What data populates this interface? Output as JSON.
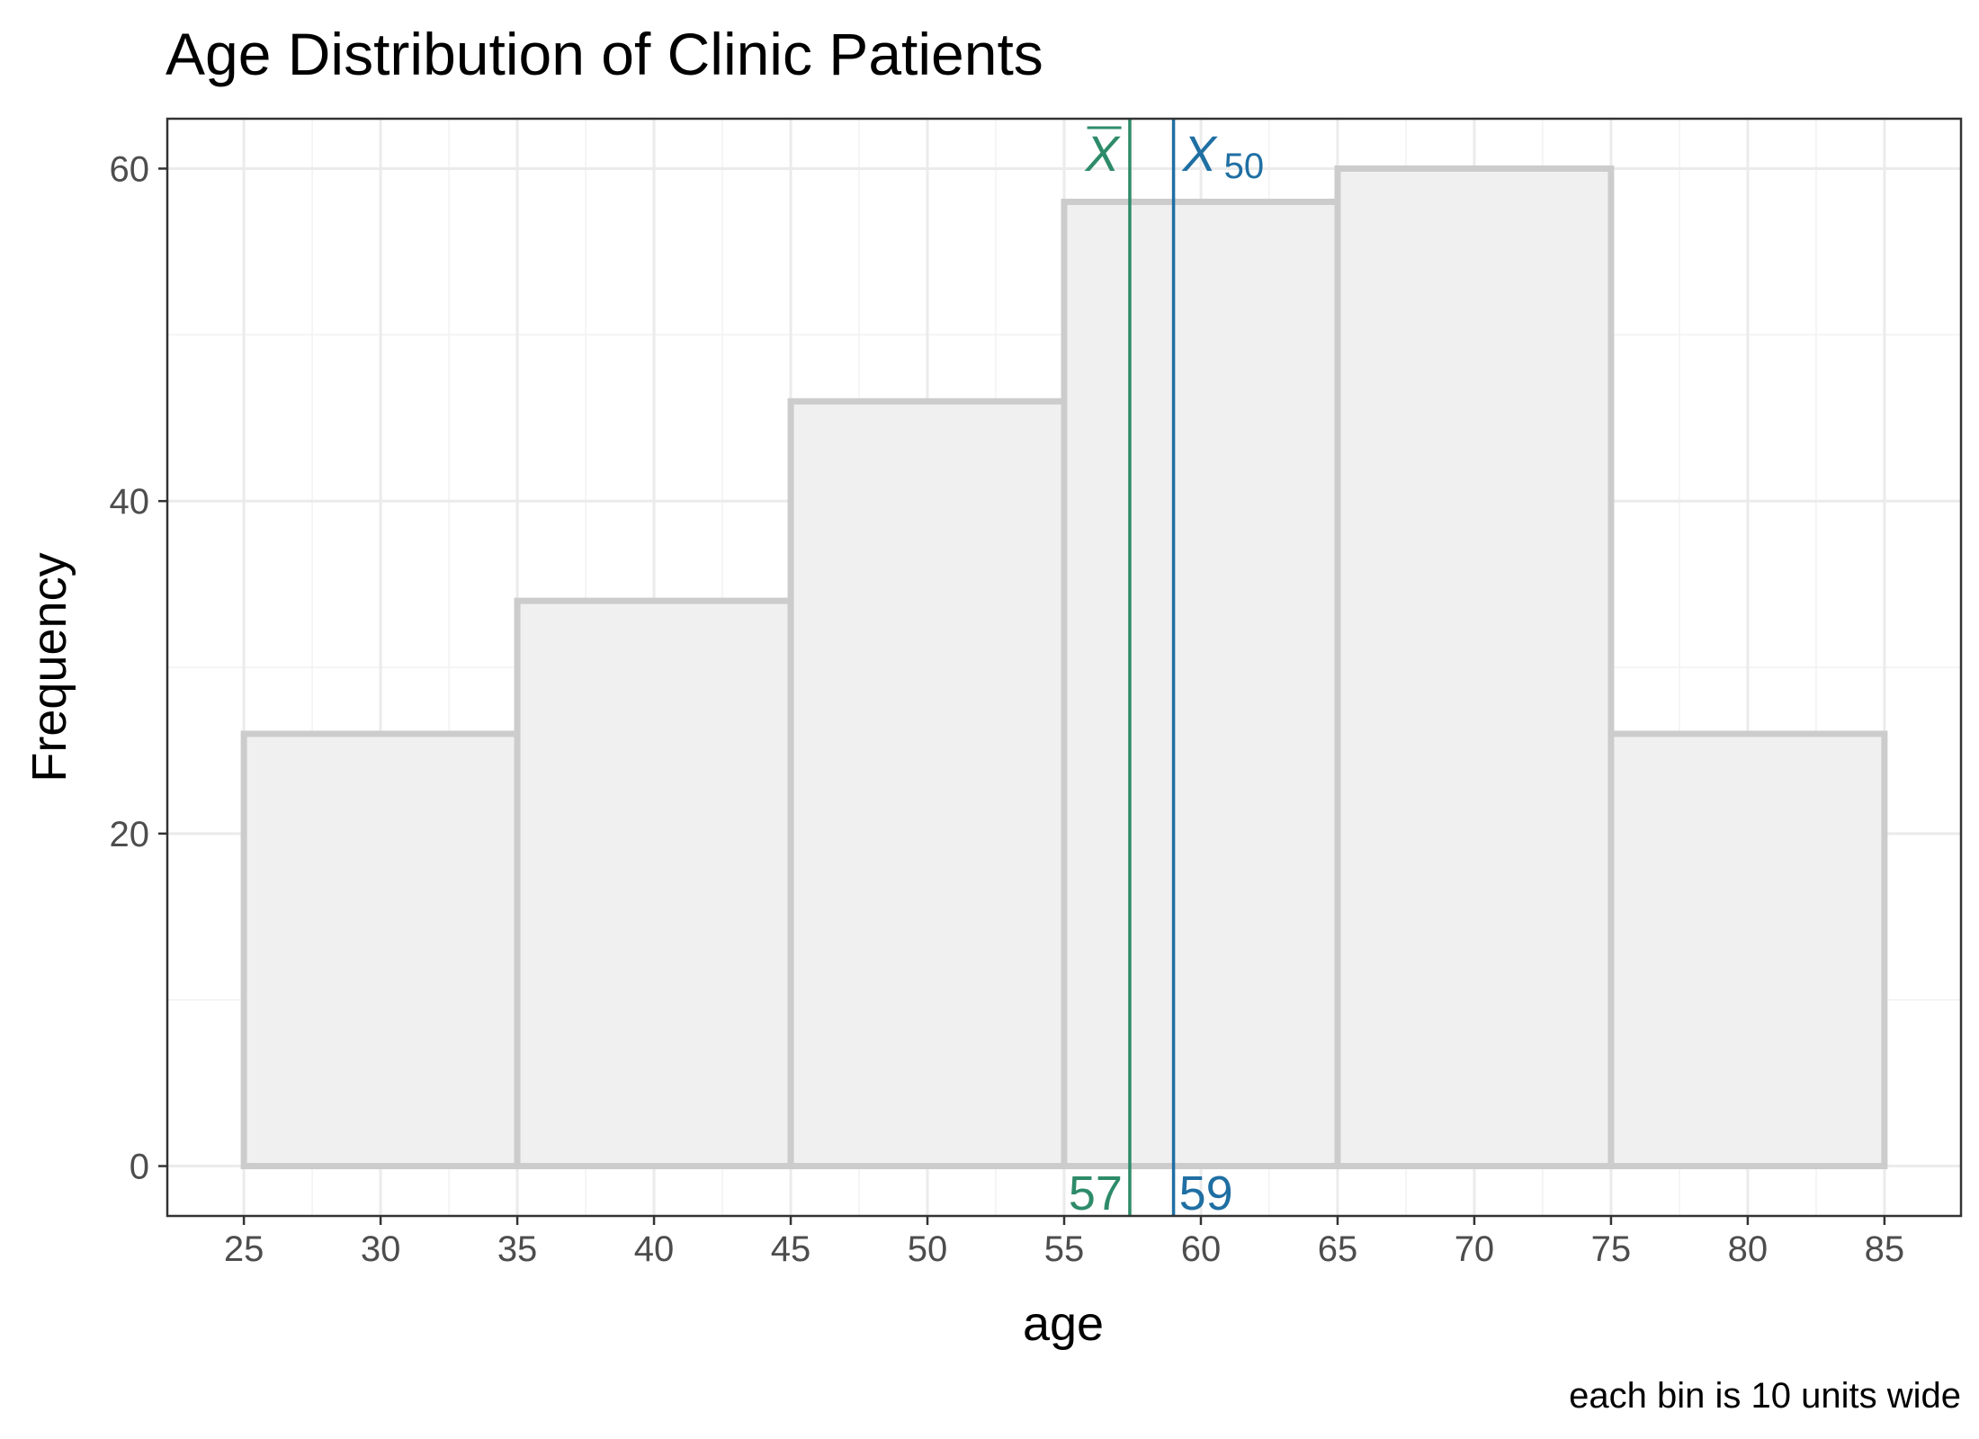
{
  "chart_data": {
    "type": "histogram",
    "title": "Age Distribution of Clinic Patients",
    "xlabel": "age",
    "ylabel": "Frequency",
    "caption": "each bin is 10 units wide",
    "xlim": [
      22.2,
      87.8
    ],
    "ylim": [
      -3,
      63
    ],
    "x_ticks": [
      25,
      30,
      35,
      40,
      45,
      50,
      55,
      60,
      65,
      70,
      75,
      80,
      85
    ],
    "y_ticks": [
      0,
      20,
      40,
      60
    ],
    "bins": [
      {
        "start": 25,
        "end": 35,
        "count": 26
      },
      {
        "start": 35,
        "end": 45,
        "count": 34
      },
      {
        "start": 45,
        "end": 55,
        "count": 46
      },
      {
        "start": 55,
        "end": 65,
        "count": 58
      },
      {
        "start": 65,
        "end": 75,
        "count": 60
      },
      {
        "start": 75,
        "end": 85,
        "count": 26
      }
    ],
    "reference_lines": [
      {
        "name": "mean",
        "symbol": "X",
        "overline": true,
        "subscript": "",
        "x": 57.4,
        "label": "57",
        "color": "#2e8b6a"
      },
      {
        "name": "median",
        "symbol": "X",
        "overline": false,
        "subscript": "50",
        "x": 59,
        "label": "59",
        "color": "#1f6fa3"
      }
    ],
    "grid": true,
    "bar_fill": "#f0f0f0",
    "bar_stroke": "#cccccc"
  }
}
